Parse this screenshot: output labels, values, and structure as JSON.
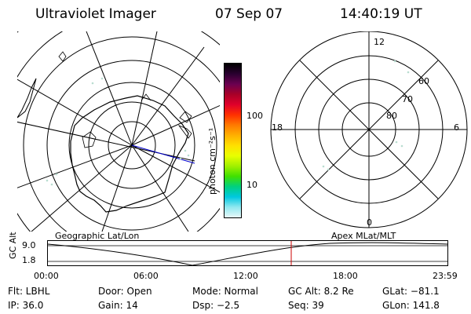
{
  "header": {
    "title": "Ultraviolet Imager",
    "date": "07 Sep 07",
    "time": "14:40:19 UT"
  },
  "colorbar": {
    "label": "photon cm⁻²s⁻¹",
    "ticks": [
      "100",
      "10"
    ],
    "colors": [
      "#000000",
      "#2a0030",
      "#6a0050",
      "#a80028",
      "#e0002a",
      "#ff3000",
      "#ff7a00",
      "#ffb000",
      "#ffe000",
      "#e8ff00",
      "#a0f000",
      "#40e000",
      "#00d080",
      "#00c8e0",
      "#90e8f0",
      "#e8f8f8"
    ]
  },
  "left_panel": {
    "label": "Geographic Lat/Lon"
  },
  "right_panel": {
    "label": "Apex MLat/MLT",
    "mlt_labels": {
      "top": "12",
      "left": "18",
      "right": "6",
      "bottom": "0"
    },
    "mlat_labels": [
      "60",
      "70",
      "80"
    ]
  },
  "altitude_plot": {
    "ylabel": "GC Alt",
    "yticks": [
      "9.0",
      "1.8"
    ],
    "xticks": [
      "00:00",
      "06:00",
      "12:00",
      "18:00",
      "23:59"
    ]
  },
  "info": {
    "flt": "Flt: LBHL",
    "door": "Door: Open",
    "mode": "Mode: Normal",
    "gc_alt": "GC Alt: 8.2 Re",
    "glat": "GLat: −81.1",
    "ip": "IP: 36.0",
    "gain": "Gain: 14",
    "dsp": "Dsp:    −2.5",
    "seq": "Seq: 39",
    "glon": "GLon: 141.8"
  }
}
